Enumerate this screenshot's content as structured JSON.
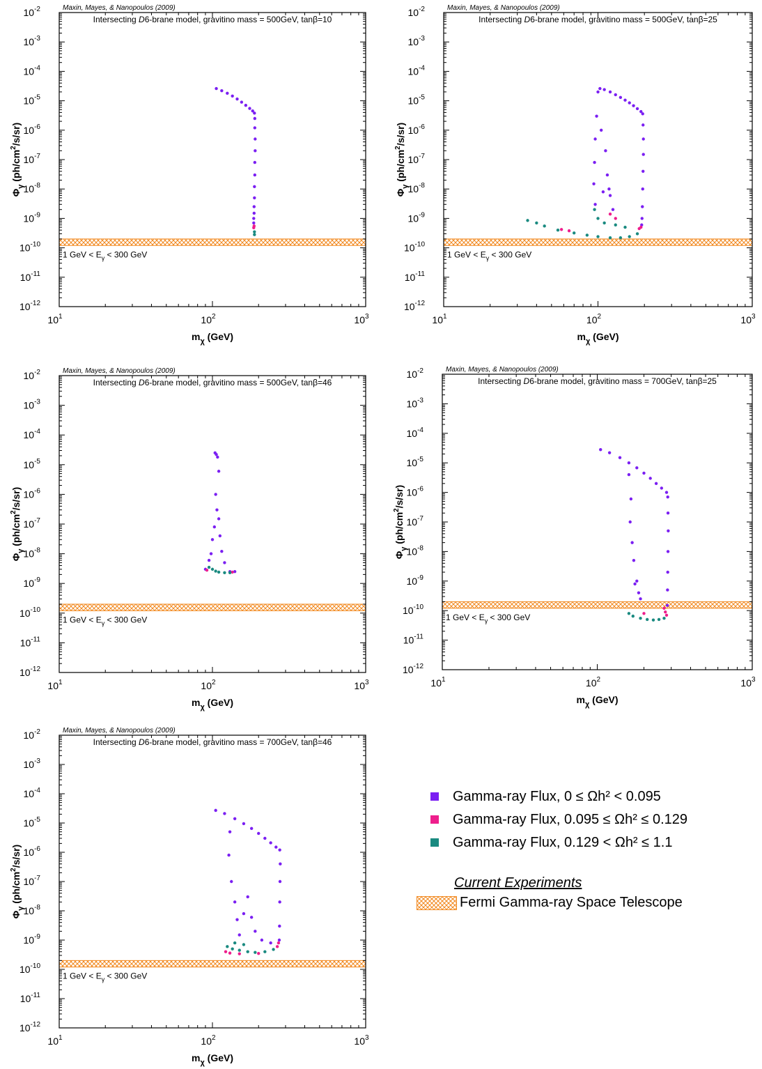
{
  "colors": {
    "purple": "#7b1ff2",
    "magenta": "#ee1e8c",
    "teal": "#1a8a80",
    "fermi_band": "#f2891f"
  },
  "common": {
    "credit": "Maxin, Mayes, & Nanopoulos (2009)",
    "xlabel_main": "m",
    "xlabel_sub": "χ",
    "xlabel_unit": " (GeV)",
    "ylabel_main": "Φ",
    "ylabel_sub": "γ",
    "ylabel_unit_a": "  (ph/cm",
    "ylabel_sup": "2",
    "ylabel_unit_b": "/s/sr)",
    "band_label_a": "1 GeV < E",
    "band_label_sub": "γ",
    "band_label_b": " < 300 GeV"
  },
  "legend": {
    "series": [
      {
        "key": "purple",
        "label": "Gamma-ray Flux, 0 ≤ Ωh² < 0.095"
      },
      {
        "key": "magenta",
        "label": "Gamma-ray Flux, 0.095 ≤ Ωh² ≤ 0.129"
      },
      {
        "key": "teal",
        "label": "Gamma-ray Flux, 0.129 < Ωh² ≤ 1.1"
      }
    ],
    "heading": "Current Experiments",
    "band_label": "Fermi Gamma-ray Space Telescope"
  },
  "chart_data": [
    {
      "type": "scatter",
      "title_a": "Intersecting ",
      "title_b": "D",
      "title_c": "6-brane model, gravitino mass = 500GeV, tanβ=10",
      "xscale": "log",
      "yscale": "log",
      "xlim": [
        10,
        1000
      ],
      "ylim": [
        1e-12,
        0.01
      ],
      "band": {
        "ymin": 1.2e-10,
        "ymax": 2e-10
      },
      "series": [
        {
          "key": "purple",
          "points": [
            [
              106,
              2.6e-05
            ],
            [
              115,
              2.2e-05
            ],
            [
              125,
              1.8e-05
            ],
            [
              135,
              1.45e-05
            ],
            [
              145,
              1.15e-05
            ],
            [
              155,
              9e-06
            ],
            [
              165,
              7e-06
            ],
            [
              175,
              5.5e-06
            ],
            [
              183,
              4.5e-06
            ],
            [
              188,
              3.8e-06
            ],
            [
              189,
              2.5e-06
            ],
            [
              189,
              1.2e-06
            ],
            [
              190,
              5e-07
            ],
            [
              190,
              2e-07
            ],
            [
              189,
              8e-08
            ],
            [
              189,
              3e-08
            ],
            [
              188,
              1.2e-08
            ],
            [
              188,
              5e-09
            ],
            [
              187,
              2.5e-09
            ],
            [
              187,
              1.5e-09
            ],
            [
              186,
              1e-09
            ],
            [
              186,
              7e-10
            ]
          ]
        },
        {
          "key": "magenta",
          "points": [
            [
              187,
              5.5e-10
            ],
            [
              186,
              4.8e-10
            ]
          ]
        },
        {
          "key": "teal",
          "points": [
            [
              188,
              3.5e-10
            ],
            [
              188,
              2.8e-10
            ]
          ]
        }
      ]
    },
    {
      "type": "scatter",
      "title_a": "Intersecting ",
      "title_b": "D",
      "title_c": "6-brane model, gravitino mass = 500GeV, tanβ=25",
      "xscale": "log",
      "yscale": "log",
      "xlim": [
        10,
        1000
      ],
      "ylim": [
        1e-12,
        0.01
      ],
      "band": {
        "ymin": 1.2e-10,
        "ymax": 2e-10
      },
      "series": [
        {
          "key": "purple",
          "points": [
            [
              103,
              2.6e-05
            ],
            [
              110,
              2.4e-05
            ],
            [
              120,
              2e-05
            ],
            [
              130,
              1.6e-05
            ],
            [
              140,
              1.3e-05
            ],
            [
              150,
              1.05e-05
            ],
            [
              160,
              8.5e-06
            ],
            [
              170,
              6.8e-06
            ],
            [
              180,
              5.4e-06
            ],
            [
              190,
              4.3e-06
            ],
            [
              195,
              3.6e-06
            ],
            [
              196,
              1.5e-06
            ],
            [
              197,
              5e-07
            ],
            [
              197,
              1.5e-07
            ],
            [
              196,
              4e-08
            ],
            [
              195,
              1e-08
            ],
            [
              194,
              2.5e-09
            ],
            [
              193,
              1e-09
            ],
            [
              192,
              6e-10
            ],
            [
              100,
              2e-05
            ],
            [
              98,
              3e-06
            ],
            [
              96,
              5e-07
            ],
            [
              95,
              8e-08
            ],
            [
              94,
              1.5e-08
            ],
            [
              96,
              3e-09
            ],
            [
              105,
              1e-06
            ],
            [
              112,
              2e-07
            ],
            [
              115,
              3e-08
            ],
            [
              120,
              6e-09
            ],
            [
              125,
              2e-09
            ],
            [
              108,
              8e-09
            ],
            [
              118,
              1e-08
            ]
          ]
        },
        {
          "key": "magenta",
          "points": [
            [
              58,
              4.2e-10
            ],
            [
              65,
              3.8e-10
            ],
            [
              190,
              5e-10
            ],
            [
              185,
              4.5e-10
            ],
            [
              120,
              1.4e-09
            ],
            [
              130,
              1e-09
            ]
          ]
        },
        {
          "key": "teal",
          "points": [
            [
              35,
              8.5e-10
            ],
            [
              40,
              7e-10
            ],
            [
              45,
              5.5e-10
            ],
            [
              55,
              4e-10
            ],
            [
              70,
              3.2e-10
            ],
            [
              85,
              2.7e-10
            ],
            [
              100,
              2.4e-10
            ],
            [
              120,
              2.2e-10
            ],
            [
              140,
              2.2e-10
            ],
            [
              160,
              2.4e-10
            ],
            [
              180,
              3e-10
            ],
            [
              95,
              2e-09
            ],
            [
              100,
              1e-09
            ],
            [
              110,
              7e-10
            ],
            [
              130,
              6e-10
            ],
            [
              150,
              5e-10
            ]
          ]
        }
      ]
    },
    {
      "type": "scatter",
      "title_a": "Intersecting ",
      "title_b": "D",
      "title_c": "6-brane model, gravitino mass = 500GeV, tanβ=46",
      "xscale": "log",
      "yscale": "log",
      "xlim": [
        10,
        1000
      ],
      "ylim": [
        1e-12,
        0.01
      ],
      "band": {
        "ymin": 1.2e-10,
        "ymax": 2e-10
      },
      "series": [
        {
          "key": "purple",
          "points": [
            [
              104,
              2.5e-05
            ],
            [
              106,
              2.2e-05
            ],
            [
              108,
              1.8e-05
            ],
            [
              110,
              6e-06
            ],
            [
              105,
              1e-06
            ],
            [
              107,
              3e-07
            ],
            [
              103,
              8e-08
            ],
            [
              110,
              1.5e-07
            ],
            [
              100,
              3e-08
            ],
            [
              112,
              4e-08
            ],
            [
              98,
              1e-08
            ],
            [
              115,
              1.2e-08
            ],
            [
              95,
              6e-09
            ],
            [
              120,
              5e-09
            ],
            [
              90,
              3e-09
            ],
            [
              130,
              2.5e-09
            ],
            [
              140,
              2.5e-09
            ]
          ]
        },
        {
          "key": "magenta",
          "points": [
            [
              92,
              2.8e-09
            ],
            [
              135,
              2.4e-09
            ]
          ]
        },
        {
          "key": "teal",
          "points": [
            [
              95,
              3.5e-09
            ],
            [
              100,
              3e-09
            ],
            [
              105,
              2.6e-09
            ],
            [
              110,
              2.4e-09
            ],
            [
              120,
              2.3e-09
            ],
            [
              130,
              2.3e-09
            ]
          ]
        }
      ]
    },
    {
      "type": "scatter",
      "title_a": "Intersecting ",
      "title_b": "D",
      "title_c": "6-brane model, gravitino mass = 700GeV, tanβ=25",
      "xscale": "log",
      "yscale": "log",
      "xlim": [
        10,
        1000
      ],
      "ylim": [
        1e-12,
        0.01
      ],
      "band": {
        "ymin": 1.2e-10,
        "ymax": 2e-10
      },
      "series": [
        {
          "key": "purple",
          "points": [
            [
              105,
              2.8e-05
            ],
            [
              120,
              2.2e-05
            ],
            [
              140,
              1.5e-05
            ],
            [
              160,
              1e-05
            ],
            [
              180,
              6.8e-06
            ],
            [
              200,
              4.5e-06
            ],
            [
              220,
              3e-06
            ],
            [
              240,
              2e-06
            ],
            [
              260,
              1.4e-06
            ],
            [
              280,
              1e-06
            ],
            [
              285,
              7e-07
            ],
            [
              286,
              2e-07
            ],
            [
              287,
              5e-08
            ],
            [
              286,
              1e-08
            ],
            [
              285,
              2e-09
            ],
            [
              284,
              5e-10
            ],
            [
              283,
              1.5e-10
            ],
            [
              160,
              4e-06
            ],
            [
              165,
              6e-07
            ],
            [
              163,
              1e-07
            ],
            [
              168,
              2e-08
            ],
            [
              172,
              5e-09
            ],
            [
              180,
              1e-09
            ],
            [
              185,
              4e-10
            ],
            [
              175,
              8e-10
            ],
            [
              190,
              2.5e-10
            ]
          ]
        },
        {
          "key": "magenta",
          "points": [
            [
              270,
              1.2e-10
            ],
            [
              275,
              9e-11
            ],
            [
              200,
              8e-11
            ],
            [
              280,
              7e-11
            ]
          ]
        },
        {
          "key": "teal",
          "points": [
            [
              160,
              8e-11
            ],
            [
              170,
              6.5e-11
            ],
            [
              190,
              5.5e-11
            ],
            [
              210,
              5e-11
            ],
            [
              230,
              4.8e-11
            ],
            [
              250,
              5e-11
            ],
            [
              270,
              5.5e-11
            ]
          ]
        }
      ]
    },
    {
      "type": "scatter",
      "title_a": "Intersecting ",
      "title_b": "D",
      "title_c": "6-brane model, gravitino mass = 700GeV, tanβ=46",
      "xscale": "log",
      "yscale": "log",
      "xlim": [
        10,
        1000
      ],
      "ylim": [
        1e-12,
        0.01
      ],
      "band": {
        "ymin": 1.2e-10,
        "ymax": 2e-10
      },
      "series": [
        {
          "key": "purple",
          "points": [
            [
              105,
              2.7e-05
            ],
            [
              120,
              2.1e-05
            ],
            [
              140,
              1.4e-05
            ],
            [
              160,
              9.5e-06
            ],
            [
              180,
              6.5e-06
            ],
            [
              200,
              4.4e-06
            ],
            [
              220,
              3e-06
            ],
            [
              240,
              2.1e-06
            ],
            [
              260,
              1.5e-06
            ],
            [
              275,
              1.2e-06
            ],
            [
              277,
              4e-07
            ],
            [
              276,
              1e-07
            ],
            [
              275,
              2e-08
            ],
            [
              274,
              3e-09
            ],
            [
              273,
              1e-09
            ],
            [
              130,
              5e-06
            ],
            [
              128,
              8e-07
            ],
            [
              133,
              1e-07
            ],
            [
              140,
              2e-08
            ],
            [
              145,
              5e-09
            ],
            [
              150,
              1.5e-09
            ],
            [
              160,
              8e-09
            ],
            [
              170,
              3e-08
            ],
            [
              180,
              6e-09
            ],
            [
              190,
              2e-09
            ],
            [
              210,
              1e-09
            ],
            [
              240,
              8e-10
            ]
          ]
        },
        {
          "key": "magenta",
          "points": [
            [
              122,
              4e-10
            ],
            [
              130,
              3.6e-10
            ],
            [
              150,
              3.4e-10
            ],
            [
              200,
              3.5e-10
            ],
            [
              265,
              6e-10
            ],
            [
              270,
              8e-10
            ]
          ]
        },
        {
          "key": "teal",
          "points": [
            [
              125,
              6e-10
            ],
            [
              135,
              5e-10
            ],
            [
              150,
              4.5e-10
            ],
            [
              170,
              4e-10
            ],
            [
              190,
              3.8e-10
            ],
            [
              220,
              4e-10
            ],
            [
              250,
              4.8e-10
            ],
            [
              140,
              8e-10
            ],
            [
              160,
              7e-10
            ]
          ]
        }
      ]
    }
  ]
}
